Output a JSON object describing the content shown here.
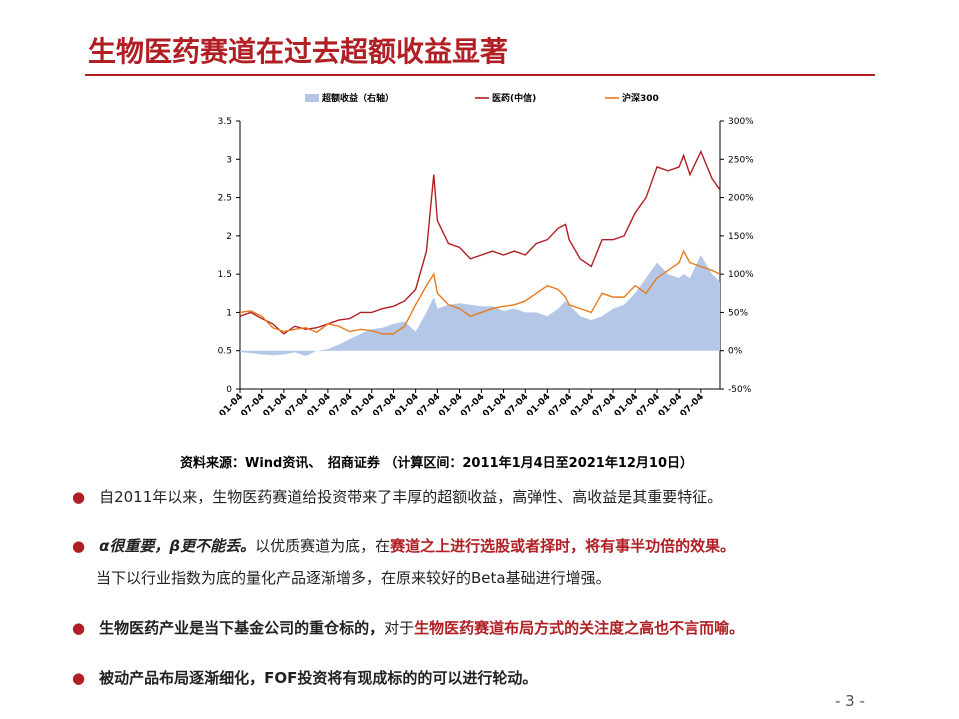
{
  "slide": {
    "title": "生物医药赛道在过去超额收益显著",
    "source": "资料来源：Wind资讯、　招商证券 （计算区间：2011年1月4日至2021年12月10日）",
    "page": "- 3 -",
    "bullets": [
      [
        "自2011年以来，生物医药赛道给投资带来了丰厚的超额收益，高弹性、高收益是其重要特征。"
      ],
      [
        "α很重要，β更不能丢。",
        "以优质赛道为底，在",
        "赛道之上进行选股或者择时，将有事半功倍的效果。",
        "当下以行业指数为底的量化产品逐渐增多，在原来较好的Beta基础进行增强。"
      ],
      [
        "生物医药产业是当下基金公司的重仓标的，",
        "对于",
        "生物医药赛道布局方式的关注度之高也不言而喻。"
      ],
      [
        "被动产品布局逐渐细化，FOF投资将有现成标的的可以进行轮动。"
      ]
    ]
  },
  "chart_data": {
    "type": "line",
    "x": [
      "2011-01-04",
      "2011-04-04",
      "2011-07-04",
      "2011-10-04",
      "2012-01-04",
      "2012-04-04",
      "2012-07-04",
      "2012-10-04",
      "2013-01-04",
      "2013-04-04",
      "2013-07-04",
      "2013-10-04",
      "2014-01-04",
      "2014-04-04",
      "2014-07-04",
      "2014-10-04",
      "2015-01-04",
      "2015-04-04",
      "2015-06-04",
      "2015-07-04",
      "2015-10-04",
      "2016-01-04",
      "2016-04-04",
      "2016-07-04",
      "2016-10-04",
      "2017-01-04",
      "2017-04-04",
      "2017-07-04",
      "2017-10-04",
      "2018-01-04",
      "2018-04-04",
      "2018-06-04",
      "2018-07-04",
      "2018-10-04",
      "2019-01-04",
      "2019-04-04",
      "2019-07-04",
      "2019-10-04",
      "2020-01-04",
      "2020-04-04",
      "2020-07-04",
      "2020-10-04",
      "2021-01-04",
      "2021-02-10",
      "2021-04-04",
      "2021-07-04",
      "2021-10-04",
      "2021-12-10"
    ],
    "xlim": [
      "2011-01-04",
      "2021-12-10"
    ],
    "xticks": [
      "2011-01-04",
      "2011-07-04",
      "2012-01-04",
      "2012-07-04",
      "2013-01-04",
      "2013-07-04",
      "2014-01-04",
      "2014-07-04",
      "2015-01-04",
      "2015-07-04",
      "2016-01-04",
      "2016-07-04",
      "2017-01-04",
      "2017-07-04",
      "2018-01-04",
      "2018-07-04",
      "2019-01-04",
      "2019-07-04",
      "2020-01-04",
      "2020-07-04",
      "2021-01-04",
      "2021-07-04"
    ],
    "ylim": [
      0,
      3.5
    ],
    "yticks": [
      0,
      0.5,
      1,
      1.5,
      2,
      2.5,
      3,
      3.5
    ],
    "y2lim": [
      -50,
      300
    ],
    "y2ticks": [
      {
        "value": -50,
        "label": "-50%"
      },
      {
        "value": 0,
        "label": "0%"
      },
      {
        "value": 50,
        "label": "50%"
      },
      {
        "value": 100,
        "label": "100%"
      },
      {
        "value": 150,
        "label": "150%"
      },
      {
        "value": 200,
        "label": "200%"
      },
      {
        "value": 250,
        "label": "250%"
      },
      {
        "value": 300,
        "label": "300%"
      }
    ],
    "series": [
      {
        "name": "超额收益（右轴）",
        "type": "area",
        "axis": "y2",
        "color": "#b4c7e7",
        "values": [
          -2,
          -3,
          -5,
          -6,
          -5,
          -2,
          -7,
          0,
          2,
          8,
          15,
          22,
          28,
          30,
          35,
          38,
          25,
          50,
          70,
          55,
          60,
          62,
          60,
          58,
          58,
          52,
          55,
          50,
          50,
          45,
          55,
          65,
          60,
          45,
          40,
          45,
          55,
          60,
          75,
          95,
          115,
          100,
          95,
          100,
          95,
          125,
          100,
          90
        ]
      },
      {
        "name": "医药(中信)",
        "type": "line",
        "color": "#b01f24",
        "values": [
          0.95,
          1.0,
          0.92,
          0.85,
          0.72,
          0.82,
          0.78,
          0.8,
          0.85,
          0.9,
          0.92,
          1.0,
          1.0,
          1.05,
          1.08,
          1.15,
          1.3,
          1.8,
          2.8,
          2.2,
          1.9,
          1.85,
          1.7,
          1.75,
          1.8,
          1.75,
          1.8,
          1.75,
          1.9,
          1.95,
          2.1,
          2.15,
          1.95,
          1.7,
          1.6,
          1.95,
          1.95,
          2.0,
          2.3,
          2.5,
          2.9,
          2.85,
          2.9,
          3.05,
          2.8,
          3.1,
          2.75,
          2.6
        ]
      },
      {
        "name": "沪深300",
        "type": "line",
        "color": "#e87a1e",
        "values": [
          1.0,
          1.02,
          0.95,
          0.8,
          0.75,
          0.78,
          0.8,
          0.74,
          0.85,
          0.82,
          0.75,
          0.78,
          0.76,
          0.72,
          0.72,
          0.82,
          1.1,
          1.35,
          1.5,
          1.25,
          1.1,
          1.05,
          0.95,
          1.0,
          1.05,
          1.08,
          1.1,
          1.15,
          1.25,
          1.35,
          1.3,
          1.2,
          1.1,
          1.05,
          1.0,
          1.25,
          1.2,
          1.2,
          1.35,
          1.25,
          1.45,
          1.55,
          1.65,
          1.8,
          1.65,
          1.6,
          1.55,
          1.5
        ]
      }
    ]
  }
}
